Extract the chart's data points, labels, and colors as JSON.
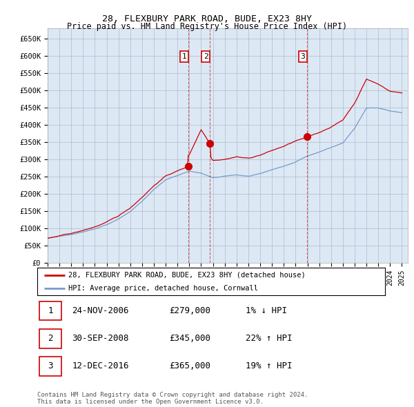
{
  "title": "28, FLEXBURY PARK ROAD, BUDE, EX23 8HY",
  "subtitle": "Price paid vs. HM Land Registry's House Price Index (HPI)",
  "ylim": [
    0,
    680000
  ],
  "yticks": [
    0,
    50000,
    100000,
    150000,
    200000,
    250000,
    300000,
    350000,
    400000,
    450000,
    500000,
    550000,
    600000,
    650000
  ],
  "ytick_labels": [
    "£0",
    "£50K",
    "£100K",
    "£150K",
    "£200K",
    "£250K",
    "£300K",
    "£350K",
    "£400K",
    "£450K",
    "£500K",
    "£550K",
    "£600K",
    "£650K"
  ],
  "background_color": "#ffffff",
  "plot_bg_color": "#dde8f5",
  "grid_color": "#aabbcc",
  "sale_color": "#cc0000",
  "hpi_color": "#7799cc",
  "sale_line_color": "#cc0000",
  "hpi_line_color": "#7799cc",
  "transactions": [
    {
      "label": "1",
      "date": "2006-11-24",
      "price": 279000,
      "x": 2006.9
    },
    {
      "label": "2",
      "date": "2008-09-30",
      "price": 345000,
      "x": 2008.75
    },
    {
      "label": "3",
      "date": "2016-12-12",
      "price": 365000,
      "x": 2016.95
    }
  ],
  "legend_entries": [
    "28, FLEXBURY PARK ROAD, BUDE, EX23 8HY (detached house)",
    "HPI: Average price, detached house, Cornwall"
  ],
  "table_rows": [
    {
      "num": "1",
      "date": "24-NOV-2006",
      "price": "£279,000",
      "change": "1% ↓ HPI"
    },
    {
      "num": "2",
      "date": "30-SEP-2008",
      "price": "£345,000",
      "change": "22% ↑ HPI"
    },
    {
      "num": "3",
      "date": "12-DEC-2016",
      "price": "£365,000",
      "change": "19% ↑ HPI"
    }
  ],
  "footnote": "Contains HM Land Registry data © Crown copyright and database right 2024.\nThis data is licensed under the Open Government Licence v3.0.",
  "xmin": 1995,
  "xmax": 2025.5
}
